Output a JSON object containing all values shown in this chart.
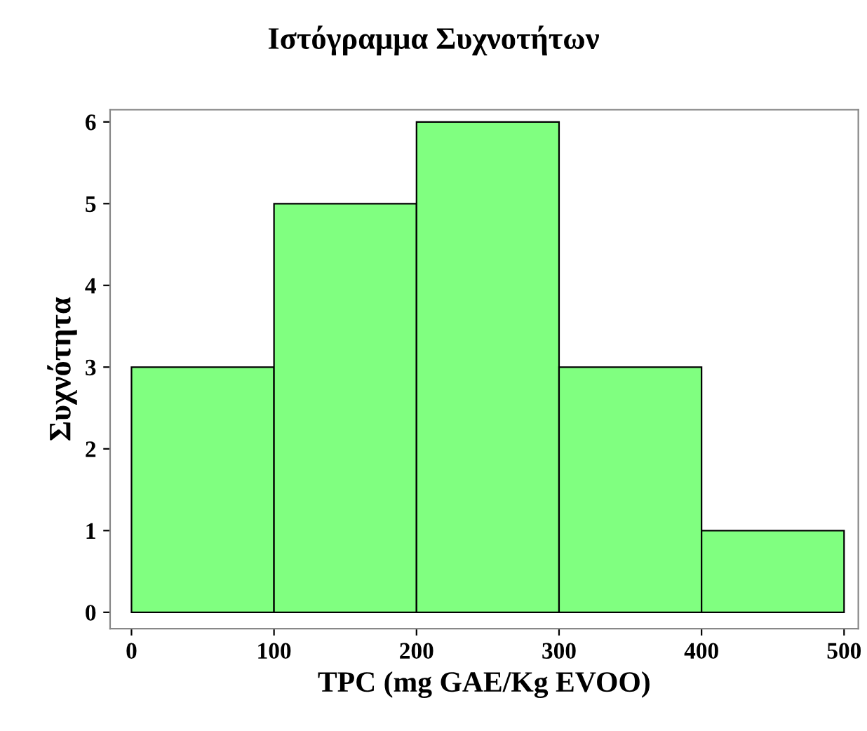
{
  "chart_data": {
    "type": "histogram",
    "title": "Ιστόγραμμα Συχνοτήτων",
    "xlabel": "TPC (mg GAE/Kg EVOO)",
    "ylabel": "Συχνότητα",
    "bins": [
      0,
      100,
      200,
      300,
      400,
      500
    ],
    "values": [
      3,
      5,
      6,
      3,
      1
    ],
    "color": "#80ff80",
    "xlim": [
      -15,
      510
    ],
    "xticks": [
      0,
      100,
      200,
      300,
      400,
      500
    ],
    "ylim": [
      -0.2,
      6.15
    ],
    "yticks": [
      0,
      1,
      2,
      3,
      4,
      5,
      6
    ],
    "grid": false
  }
}
